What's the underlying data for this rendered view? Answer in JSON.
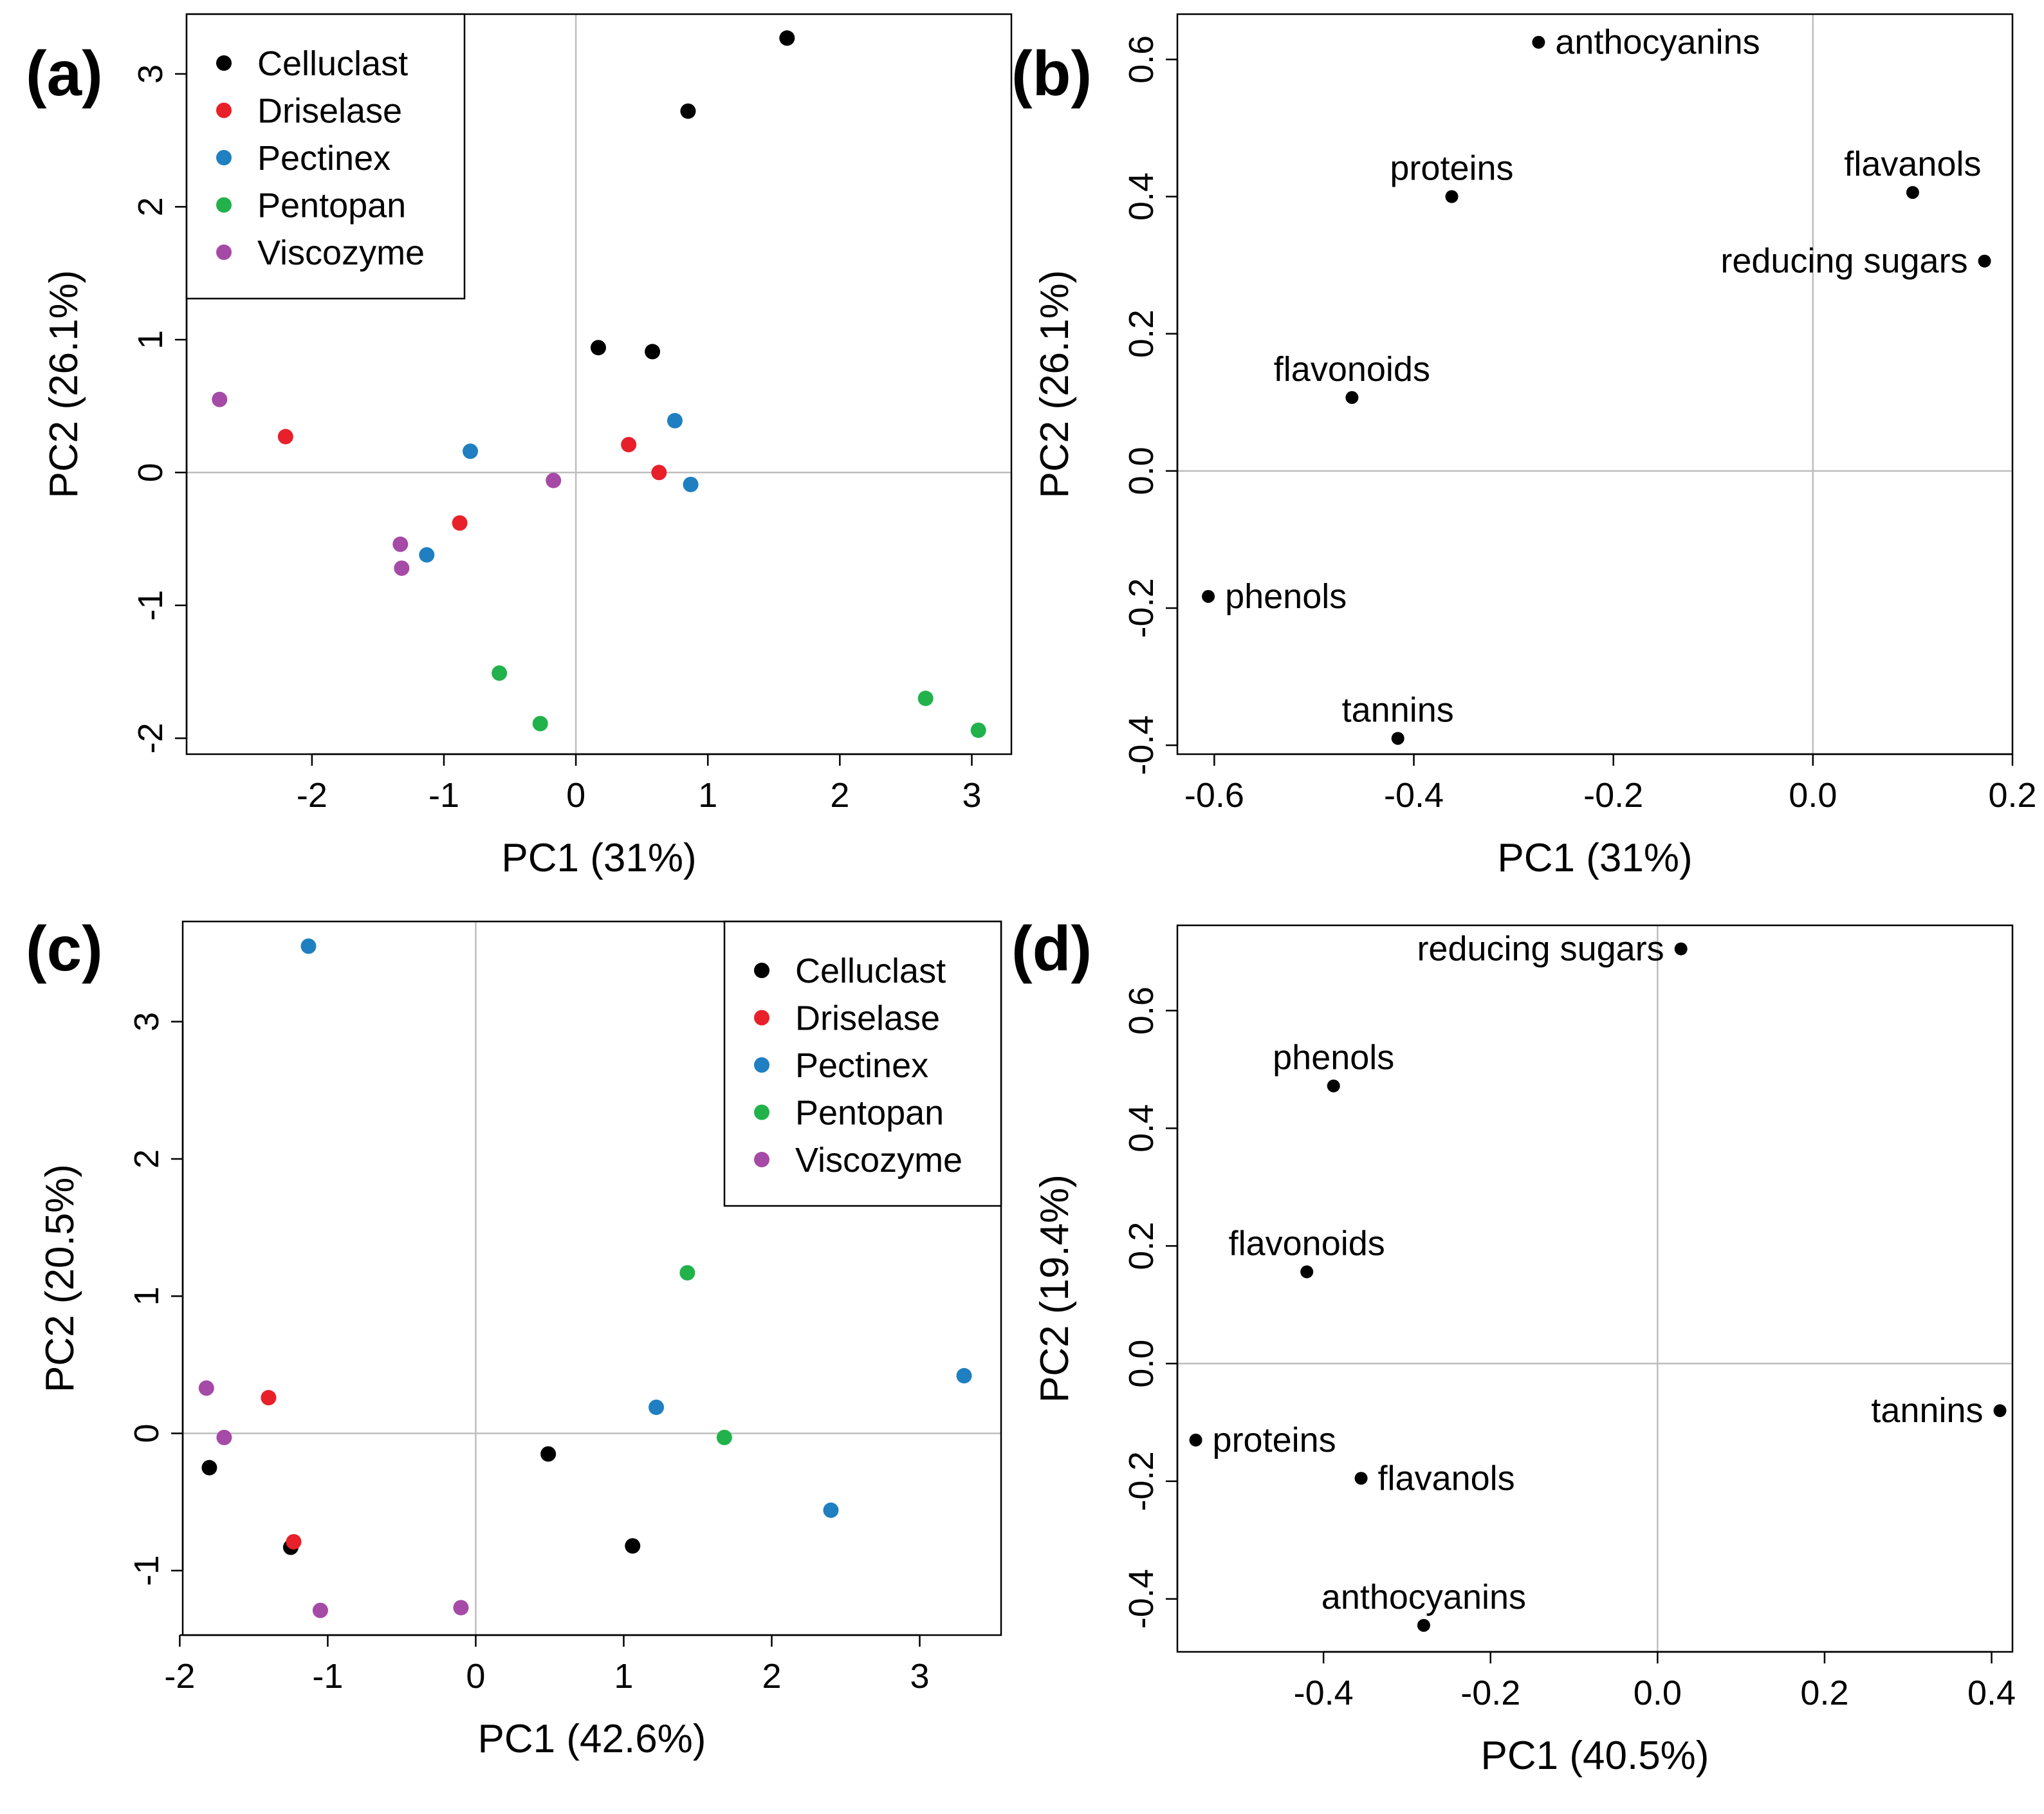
{
  "chart_data": [
    {
      "panel": "(a)",
      "type": "scatter",
      "xlabel": "PC1 (31%)",
      "ylabel": "PC2 (26.1%)",
      "xlim": [
        -2.95,
        3.3
      ],
      "ylim": [
        -2.12,
        3.45
      ],
      "xticks": [
        -2,
        -1,
        0,
        1,
        2,
        3
      ],
      "yticks": [
        -2,
        -1,
        0,
        1,
        2,
        3
      ],
      "zero_lines": true,
      "legend_position": "top-left",
      "legend": [
        "Celluclast",
        "Driselase",
        "Pectinex",
        "Pentopan",
        "Viscozyme"
      ],
      "series": [
        {
          "name": "Celluclast",
          "color": "#000000",
          "points": [
            [
              1.6,
              3.27
            ],
            [
              0.85,
              2.72
            ],
            [
              0.17,
              0.94
            ],
            [
              0.58,
              0.91
            ]
          ]
        },
        {
          "name": "Driselase",
          "color": "#e8202a",
          "points": [
            [
              -2.2,
              0.27
            ],
            [
              0.4,
              0.21
            ],
            [
              0.63,
              0.0
            ],
            [
              -0.88,
              -0.38
            ]
          ]
        },
        {
          "name": "Pectinex",
          "color": "#1f7fc1",
          "points": [
            [
              -0.8,
              0.16
            ],
            [
              0.75,
              0.39
            ],
            [
              0.87,
              -0.09
            ],
            [
              -1.13,
              -0.62
            ]
          ]
        },
        {
          "name": "Pentopan",
          "color": "#21b24b",
          "points": [
            [
              -0.58,
              -1.51
            ],
            [
              -0.27,
              -1.89
            ],
            [
              2.65,
              -1.7
            ],
            [
              3.05,
              -1.94
            ]
          ]
        },
        {
          "name": "Viscozyme",
          "color": "#a54aa6",
          "points": [
            [
              -2.7,
              0.55
            ],
            [
              -0.17,
              -0.06
            ],
            [
              -1.33,
              -0.54
            ],
            [
              -1.32,
              -0.72
            ]
          ]
        }
      ]
    },
    {
      "panel": "(b)",
      "type": "scatter",
      "xlabel": "PC1 (31%)",
      "ylabel": "PC2 (26.1%)",
      "xlim": [
        -0.637,
        0.2
      ],
      "ylim": [
        -0.413,
        0.666
      ],
      "xticks": [
        -0.6,
        -0.4,
        -0.2,
        0.0,
        0.2
      ],
      "xtick_labels": [
        "-0.6",
        "-0.4",
        "-0.2",
        "0.0",
        "0.2"
      ],
      "yticks": [
        -0.4,
        -0.2,
        0.0,
        0.2,
        0.4,
        0.6
      ],
      "ytick_labels": [
        "-0.4",
        "-0.2",
        "0.0",
        "0.2",
        "0.4",
        "0.6"
      ],
      "zero_lines": true,
      "series": [
        {
          "name": "loadings",
          "color": "#000000",
          "points": [
            {
              "label": "anthocyanins",
              "x": -0.275,
              "y": 0.625,
              "label_side": "right"
            },
            {
              "label": "proteins",
              "x": -0.362,
              "y": 0.4,
              "label_side": "above"
            },
            {
              "label": "flavanols",
              "x": 0.1,
              "y": 0.406,
              "label_side": "above"
            },
            {
              "label": "reducing sugars",
              "x": 0.172,
              "y": 0.306,
              "label_side": "left"
            },
            {
              "label": "flavonoids",
              "x": -0.462,
              "y": 0.107,
              "label_side": "above"
            },
            {
              "label": "phenols",
              "x": -0.606,
              "y": -0.183,
              "label_side": "right"
            },
            {
              "label": "tannins",
              "x": -0.416,
              "y": -0.39,
              "label_side": "above"
            }
          ]
        }
      ]
    },
    {
      "panel": "(c)",
      "type": "scatter",
      "xlabel": "PC1 (42.6%)",
      "ylabel": "PC2 (20.5%)",
      "xlim": [
        -1.98,
        3.55
      ],
      "ylim": [
        -1.47,
        3.73
      ],
      "xticks": [
        -2,
        -1,
        0,
        1,
        2,
        3
      ],
      "yticks": [
        -1,
        0,
        1,
        2,
        3
      ],
      "zero_lines": true,
      "legend_position": "top-right",
      "legend": [
        "Celluclast",
        "Driselase",
        "Pectinex",
        "Pentopan",
        "Viscozyme"
      ],
      "series": [
        {
          "name": "Celluclast",
          "color": "#000000",
          "points": [
            [
              -1.8,
              -0.25
            ],
            [
              -1.25,
              -0.83
            ],
            [
              0.49,
              -0.15
            ],
            [
              1.06,
              -0.82
            ]
          ]
        },
        {
          "name": "Driselase",
          "color": "#e8202a",
          "points": [
            [
              -1.4,
              0.26
            ],
            [
              -1.23,
              -0.79
            ]
          ]
        },
        {
          "name": "Pectinex",
          "color": "#1f7fc1",
          "points": [
            [
              -1.13,
              3.55
            ],
            [
              1.22,
              0.19
            ],
            [
              2.4,
              -0.56
            ],
            [
              3.3,
              0.42
            ]
          ]
        },
        {
          "name": "Pentopan",
          "color": "#21b24b",
          "points": [
            [
              1.43,
              1.17
            ],
            [
              1.68,
              -0.03
            ]
          ]
        },
        {
          "name": "Viscozyme",
          "color": "#a54aa6",
          "points": [
            [
              -1.82,
              0.33
            ],
            [
              -1.7,
              -0.03
            ],
            [
              -1.05,
              -1.29
            ],
            [
              -0.1,
              -1.27
            ]
          ]
        }
      ]
    },
    {
      "panel": "(d)",
      "type": "scatter",
      "xlabel": "PC1 (40.5%)",
      "ylabel": "PC2 (19.4%)",
      "xlim": [
        -0.575,
        0.425
      ],
      "ylim": [
        -0.49,
        0.745
      ],
      "xticks": [
        -0.4,
        -0.2,
        0.0,
        0.2,
        0.4
      ],
      "xtick_labels": [
        "-0.4",
        "-0.2",
        "0.0",
        "0.2",
        "0.4"
      ],
      "yticks": [
        -0.4,
        -0.2,
        0.0,
        0.2,
        0.4,
        0.6
      ],
      "ytick_labels": [
        "-0.4",
        "-0.2",
        "0.0",
        "0.2",
        "0.4",
        "0.6"
      ],
      "zero_lines": true,
      "series": [
        {
          "name": "loadings",
          "color": "#000000",
          "points": [
            {
              "label": "reducing sugars",
              "x": 0.028,
              "y": 0.705,
              "label_side": "left"
            },
            {
              "label": "phenols",
              "x": -0.388,
              "y": 0.472,
              "label_side": "above"
            },
            {
              "label": "flavonoids",
              "x": -0.42,
              "y": 0.156,
              "label_side": "above"
            },
            {
              "label": "tannins",
              "x": 0.41,
              "y": -0.08,
              "label_side": "left"
            },
            {
              "label": "proteins",
              "x": -0.553,
              "y": -0.13,
              "label_side": "right"
            },
            {
              "label": "flavanols",
              "x": -0.355,
              "y": -0.195,
              "label_side": "right"
            },
            {
              "label": "anthocyanins",
              "x": -0.28,
              "y": -0.445,
              "label_side": "above"
            }
          ]
        }
      ]
    }
  ]
}
